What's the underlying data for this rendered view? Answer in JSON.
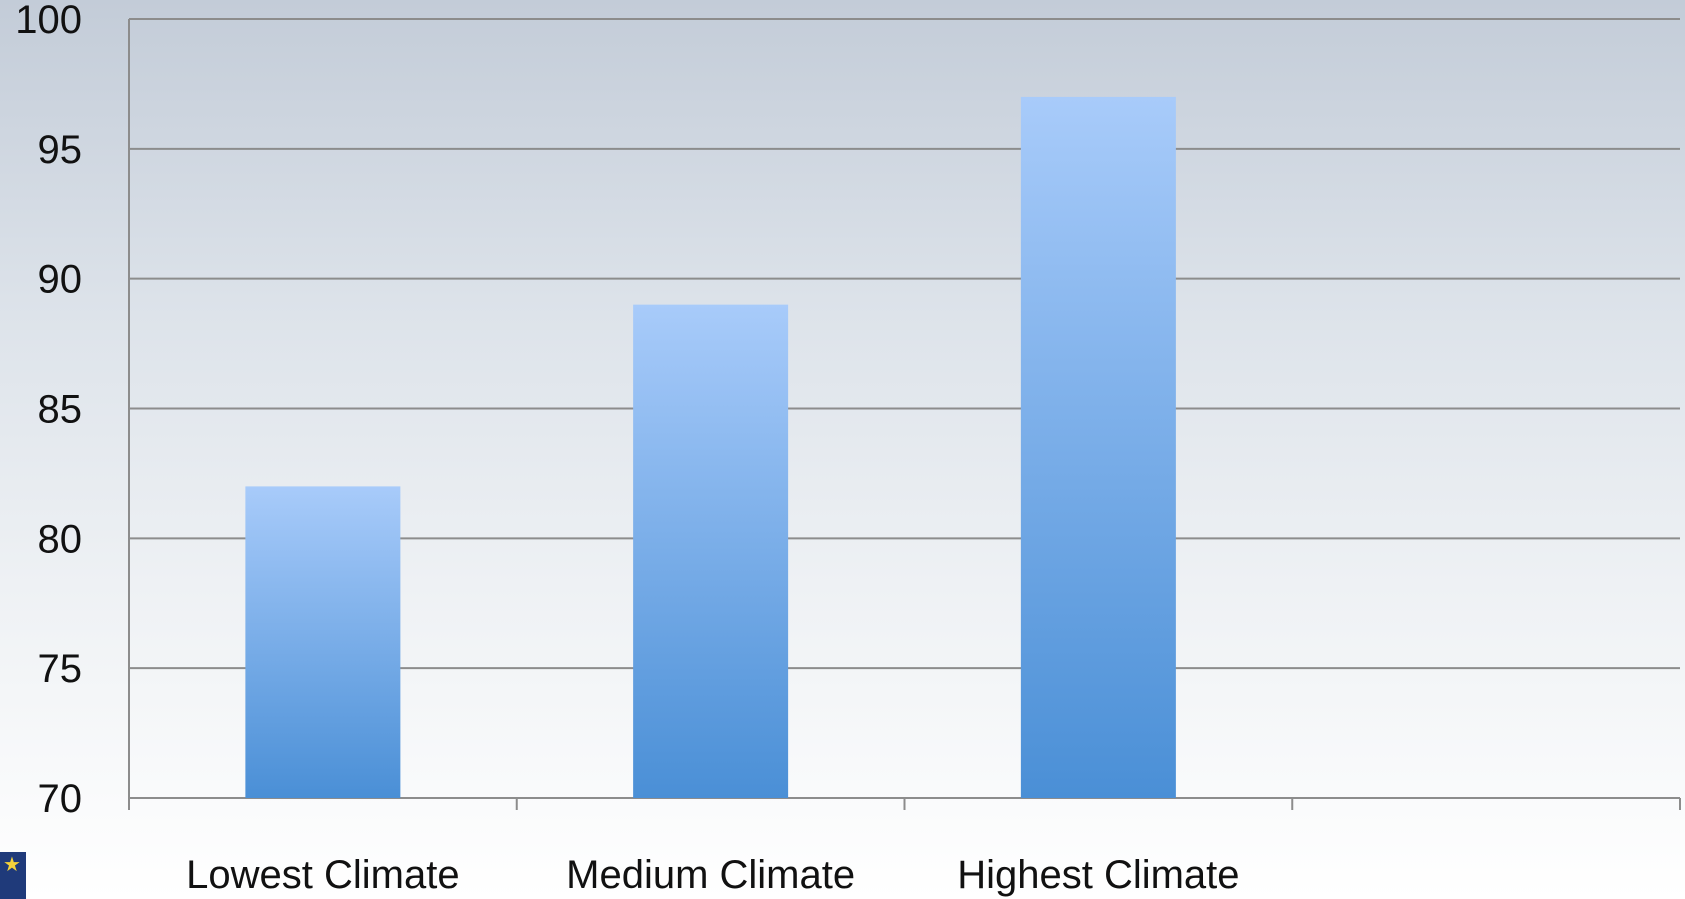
{
  "chart_data": {
    "type": "bar",
    "categories": [
      "Lowest Climate",
      "Medium Climate",
      "Highest Climate"
    ],
    "values": [
      82,
      89,
      97
    ],
    "ylim": [
      70,
      100
    ],
    "yticks": [
      70,
      75,
      80,
      85,
      90,
      95,
      100
    ],
    "grid": true,
    "colors": {
      "bar_top": "#a8cbfa",
      "bar_bottom": "#4a8fd6",
      "grid": "#8c8c8c",
      "axis": "#8c8c8c"
    }
  },
  "logo": {
    "icon": "star-badge-icon"
  }
}
